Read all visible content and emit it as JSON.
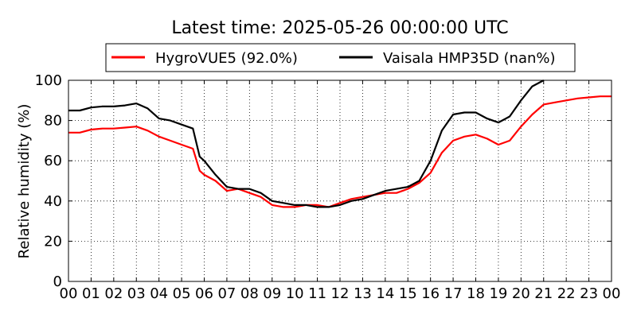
{
  "chart_data": {
    "type": "line",
    "title": "Latest time: 2025-05-26 00:00:00 UTC",
    "xlabel": "",
    "ylabel": "Relative humidity (%)",
    "xlim": [
      0,
      24
    ],
    "ylim": [
      0,
      100
    ],
    "x_ticks": [
      "00",
      "01",
      "02",
      "03",
      "04",
      "05",
      "06",
      "07",
      "08",
      "09",
      "10",
      "11",
      "12",
      "13",
      "14",
      "15",
      "16",
      "17",
      "18",
      "19",
      "20",
      "21",
      "22",
      "23",
      "00"
    ],
    "y_ticks": [
      "0",
      "20",
      "40",
      "60",
      "80",
      "100"
    ],
    "grid": true,
    "legend_position": "top",
    "series": [
      {
        "name": "HygroVUE5 (92.0%)",
        "color": "#ff0000",
        "x": [
          0,
          0.5,
          1,
          1.5,
          2,
          2.5,
          3,
          3.5,
          4,
          4.5,
          5,
          5.5,
          5.8,
          6,
          6.5,
          7,
          7.5,
          8,
          8.5,
          9,
          9.5,
          10,
          10.5,
          11,
          11.5,
          12,
          12.5,
          13,
          13.5,
          14,
          14.5,
          15,
          15.5,
          16,
          16.5,
          17,
          17.5,
          18,
          18.5,
          19,
          19.5,
          20,
          20.5,
          21,
          21.5,
          22,
          22.5,
          23,
          23.5,
          24
        ],
        "values": [
          74,
          74,
          75.5,
          76,
          76,
          76.5,
          77,
          75,
          72,
          70,
          68,
          66,
          55,
          53,
          50,
          45,
          46,
          44,
          42,
          38,
          37,
          37,
          38,
          38,
          37,
          39,
          41,
          42,
          43,
          44,
          44,
          46,
          49,
          54,
          64,
          70,
          72,
          73,
          71,
          68,
          70,
          77,
          83,
          88,
          89,
          90,
          91,
          91.5,
          92,
          92
        ]
      },
      {
        "name": "Vaisala HMP35D (nan%)",
        "color": "#000000",
        "x": [
          0,
          0.5,
          1,
          1.5,
          2,
          2.5,
          3,
          3.5,
          4,
          4.5,
          5,
          5.5,
          5.8,
          6,
          6.5,
          7,
          7.5,
          8,
          8.5,
          9,
          9.5,
          10,
          10.5,
          11,
          11.5,
          12,
          12.5,
          13,
          13.5,
          14,
          14.5,
          15,
          15.5,
          16,
          16.5,
          17,
          17.5,
          18,
          18.5,
          19,
          19.5,
          20,
          20.5,
          21
        ],
        "values": [
          85,
          85,
          86.5,
          87,
          87,
          87.5,
          88.5,
          86,
          81,
          80,
          78,
          76,
          62,
          60,
          53,
          47,
          46,
          46,
          44,
          40,
          39,
          38,
          38,
          37,
          37,
          38,
          40,
          41,
          43,
          45,
          46,
          47,
          50,
          60,
          75,
          83,
          84,
          84,
          81,
          79,
          82,
          90,
          97,
          100
        ]
      }
    ]
  }
}
